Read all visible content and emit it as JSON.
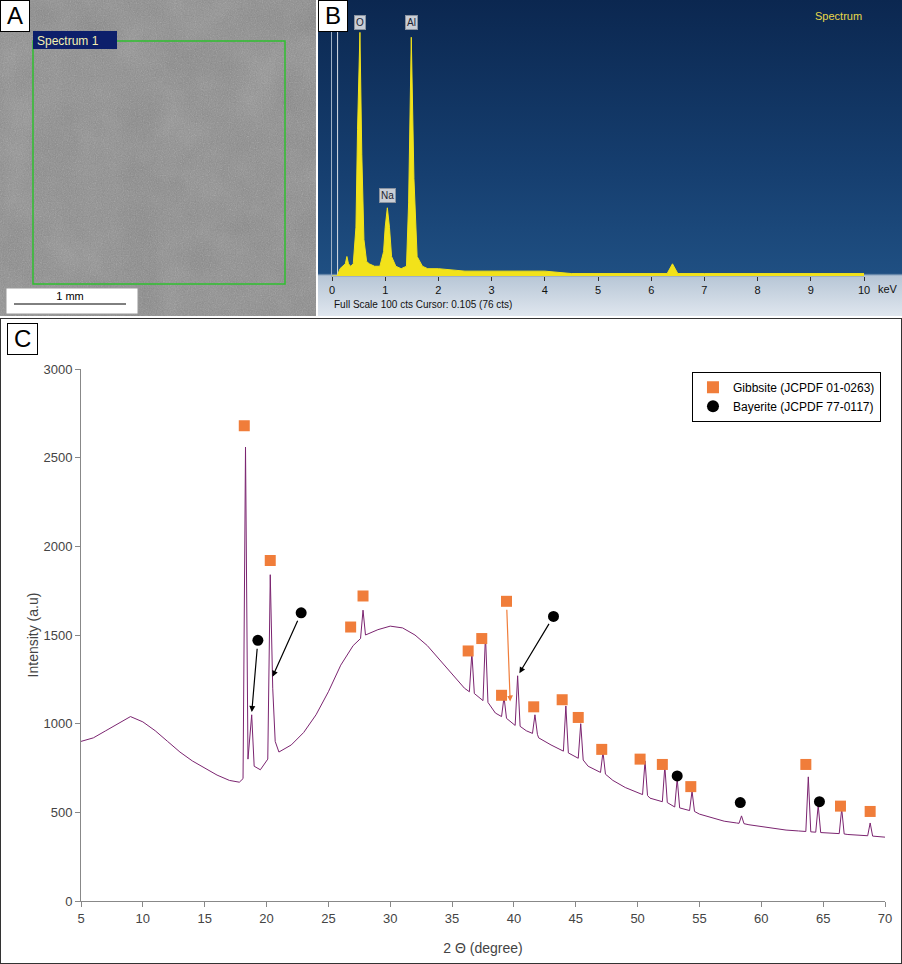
{
  "chart_data": [
    {
      "panel": "A",
      "type": "image",
      "box_label": "Spectrum 1",
      "scale_bar": "1 mm"
    },
    {
      "panel": "B",
      "type": "area",
      "title": "Spectrum",
      "x_label": "keV",
      "footer": "Full Scale 100 cts Cursor: 0.105 (76 cts)",
      "cursor": 0.105,
      "color": "#f2e21a",
      "grid": false,
      "tick_labels": "x",
      "xlim": [
        0,
        10
      ],
      "xticks": [
        0,
        1,
        2,
        3,
        4,
        5,
        6,
        7,
        8,
        9,
        10
      ],
      "ylim": [
        0,
        110
      ],
      "x": [
        0,
        0.1,
        0.15,
        0.2,
        0.25,
        0.28,
        0.31,
        0.35,
        0.4,
        0.45,
        0.48,
        0.525,
        0.56,
        0.6,
        0.65,
        0.7,
        0.8,
        0.9,
        0.97,
        1.0,
        1.04,
        1.08,
        1.12,
        1.2,
        1.3,
        1.4,
        1.44,
        1.49,
        1.54,
        1.6,
        1.7,
        1.8,
        2,
        2.5,
        3,
        3.5,
        4,
        4.5,
        5,
        5.5,
        6,
        6.3,
        6.4,
        6.5,
        7,
        8,
        9,
        10
      ],
      "values": [
        0,
        0,
        3,
        4,
        5,
        8,
        5,
        4,
        5,
        20,
        60,
        100,
        50,
        15,
        6,
        5,
        4,
        4,
        10,
        20,
        28,
        20,
        8,
        4,
        3,
        4,
        30,
        98,
        40,
        8,
        4,
        3,
        3,
        2,
        2,
        2,
        2,
        1,
        1,
        1,
        1,
        1,
        5,
        1,
        1,
        1,
        1,
        1
      ],
      "annotations": [
        {
          "text": "O",
          "x": 0.525,
          "y": 104
        },
        {
          "text": "Na",
          "x": 1.04,
          "y": 33
        },
        {
          "text": "Al",
          "x": 1.49,
          "y": 104
        }
      ]
    },
    {
      "panel": "C",
      "type": "line",
      "x_label": "2 Θ (degree)",
      "y_label": "Intensity (a.u)",
      "color": "#7b2470",
      "grid": false,
      "legend": "upper right",
      "xlim": [
        5,
        70
      ],
      "xticks": [
        5,
        10,
        15,
        20,
        25,
        30,
        35,
        40,
        45,
        50,
        55,
        60,
        65,
        70
      ],
      "ylim": [
        0,
        3000
      ],
      "yticks": [
        0,
        500,
        1000,
        1500,
        2000,
        2500,
        3000
      ],
      "x": [
        5,
        6,
        7,
        8,
        9,
        10,
        11,
        12,
        13,
        14,
        15,
        16,
        17,
        17.8,
        18.1,
        18.3,
        18.5,
        18.8,
        19.0,
        19.5,
        20.1,
        20.3,
        20.5,
        20.7,
        21,
        22,
        23,
        24,
        25,
        26,
        27,
        27.6,
        27.8,
        28.0,
        29,
        30,
        31,
        32,
        33,
        34,
        35,
        36,
        36.4,
        36.6,
        36.8,
        37.5,
        37.7,
        37.9,
        38.5,
        39.0,
        39.2,
        39.4,
        40.1,
        40.3,
        40.5,
        41,
        41.5,
        41.7,
        41.9,
        42,
        43,
        44.0,
        44.2,
        44.4,
        45.2,
        45.4,
        45.6,
        46,
        47.0,
        47.2,
        47.4,
        48,
        49,
        50,
        50.4,
        50.6,
        50.8,
        51,
        52.0,
        52.2,
        52.4,
        53.0,
        53.2,
        53.4,
        54.2,
        54.4,
        54.6,
        55,
        56,
        57,
        58,
        58.2,
        58.4,
        58.6,
        59,
        60,
        61,
        62,
        63,
        63.6,
        63.8,
        64.0,
        64.4,
        64.6,
        64.8,
        65,
        66,
        66.3,
        66.5,
        66.7,
        67,
        68,
        68.6,
        68.8,
        69.0,
        70
      ],
      "values": [
        900,
        920,
        960,
        1000,
        1040,
        1010,
        960,
        900,
        840,
        790,
        750,
        710,
        680,
        670,
        690,
        2560,
        800,
        1050,
        760,
        740,
        800,
        1840,
        1200,
        900,
        840,
        880,
        950,
        1050,
        1180,
        1330,
        1440,
        1480,
        1640,
        1500,
        1530,
        1550,
        1540,
        1500,
        1440,
        1360,
        1280,
        1200,
        1180,
        1400,
        1170,
        1130,
        1500,
        1120,
        1060,
        1040,
        1150,
        1030,
        990,
        1270,
        985,
        960,
        945,
        1050,
        940,
        920,
        880,
        845,
        1100,
        835,
        805,
        1000,
        795,
        760,
        725,
        840,
        715,
        680,
        640,
        610,
        600,
        790,
        595,
        580,
        560,
        760,
        555,
        530,
        690,
        525,
        510,
        620,
        505,
        490,
        470,
        450,
        440,
        438,
        480,
        436,
        430,
        420,
        410,
        400,
        395,
        392,
        700,
        390,
        388,
        540,
        386,
        385,
        380,
        380,
        520,
        378,
        375,
        370,
        368,
        440,
        366,
        360
      ],
      "series": [
        {
          "name": "Gibbsite (JCPDF 01-0263)",
          "type": "scatter",
          "marker": "square",
          "color": "#f07d3a",
          "x": [
            18.2,
            20.3,
            26.8,
            27.8,
            36.3,
            37.4,
            39.0,
            39.4,
            41.6,
            43.9,
            45.2,
            47.1,
            50.2,
            52.0,
            54.3,
            63.6,
            66.4,
            68.8
          ],
          "values": [
            2680,
            1920,
            1545,
            1720,
            1410,
            1480,
            1160,
            1690,
            1095,
            1135,
            1035,
            855,
            800,
            770,
            645,
            770,
            535,
            505
          ],
          "arrows": [
            {
              "from": [
                39.4,
                1690
              ],
              "to": [
                39.7,
                1120
              ]
            }
          ]
        },
        {
          "name": "Bayerite (JCPDF 77-0117)",
          "type": "scatter",
          "marker": "circle",
          "color": "#000000",
          "x": [
            19.3,
            22.8,
            43.2,
            53.2,
            58.3,
            64.7
          ],
          "values": [
            1470,
            1625,
            1605,
            705,
            555,
            560
          ],
          "arrows": [
            {
              "from": [
                19.3,
                1470
              ],
              "to": [
                18.8,
                1060
              ]
            },
            {
              "from": [
                22.8,
                1625
              ],
              "to": [
                20.45,
                1260
              ]
            },
            {
              "from": [
                43.2,
                1605
              ],
              "to": [
                40.4,
                1280
              ]
            }
          ]
        }
      ]
    }
  ]
}
